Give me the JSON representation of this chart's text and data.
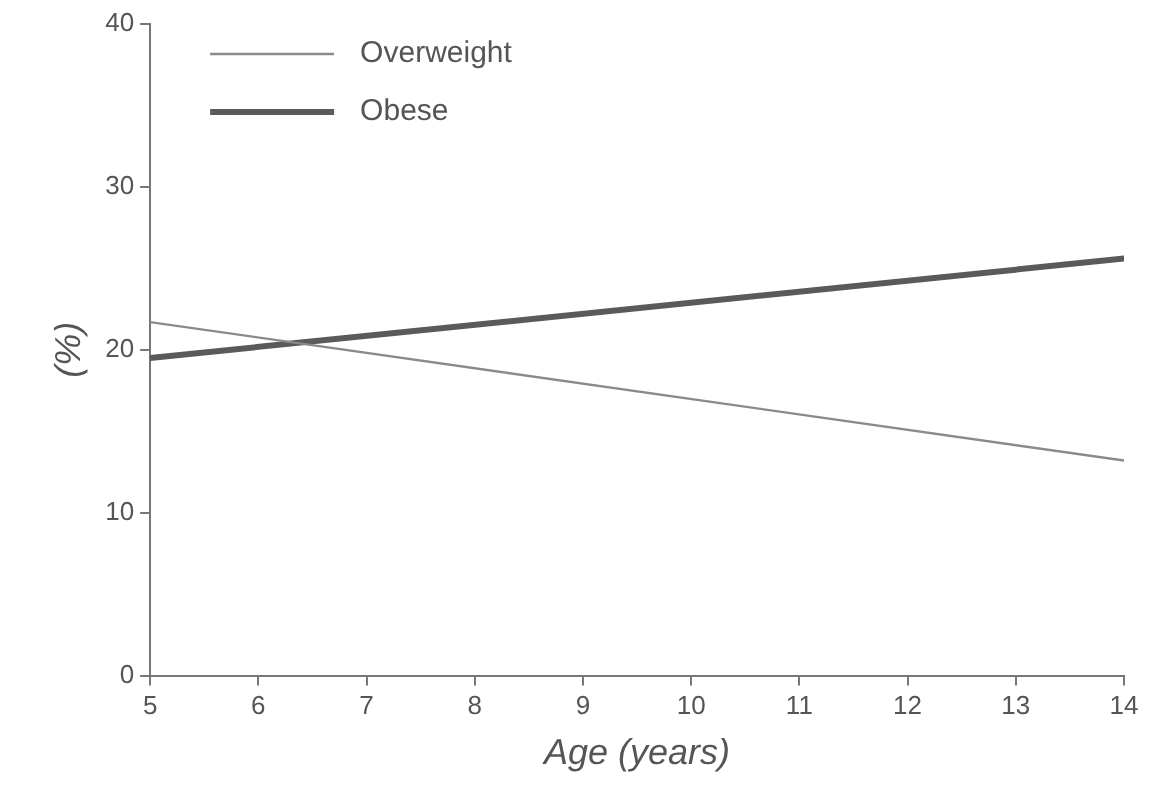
{
  "chart_data": {
    "type": "line",
    "xlabel": "Age (years)",
    "ylabel": "(%)",
    "x": [
      5,
      14
    ],
    "series": [
      {
        "name": "Overweight",
        "color": "#8a8a8a",
        "values": [
          21.7,
          13.2
        ]
      },
      {
        "name": "Obese",
        "color": "#5a5a5a",
        "values": [
          19.5,
          25.6
        ]
      }
    ],
    "xlim": [
      5,
      14
    ],
    "xticks": [
      5,
      6,
      7,
      8,
      9,
      10,
      11,
      12,
      13,
      14
    ],
    "ylim": [
      0,
      40
    ],
    "yticks": [
      0,
      10,
      20,
      30,
      40
    ],
    "grid": false,
    "legend": "top left",
    "marker": "none",
    "line_style": "solid"
  }
}
